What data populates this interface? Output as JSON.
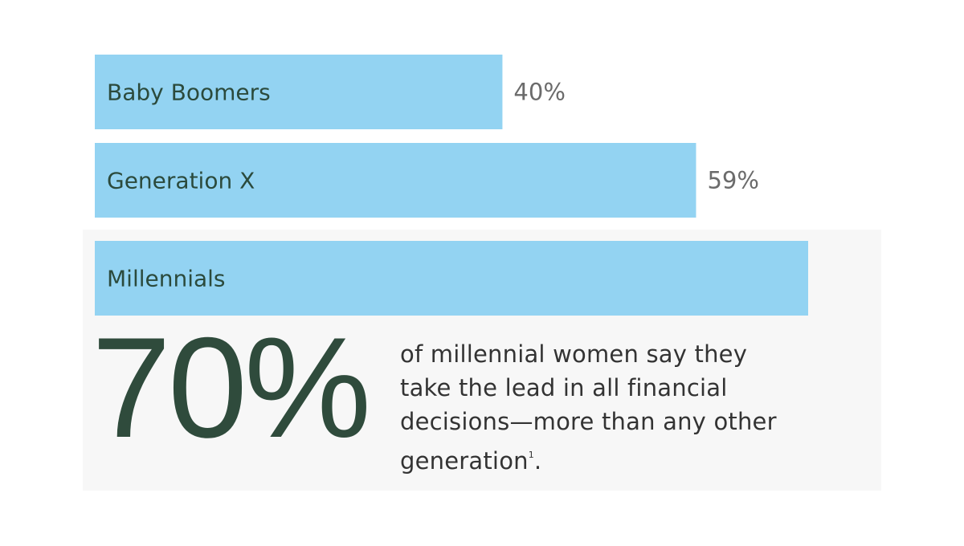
{
  "chart_data": {
    "type": "bar",
    "orientation": "horizontal",
    "categories": [
      "Baby Boomers",
      "Generation X",
      "Millennials"
    ],
    "values": [
      40,
      59,
      70
    ],
    "value_labels": [
      "40%",
      "59%",
      "70%"
    ],
    "color": "#93d3f2",
    "highlight": "Millennials",
    "annotation": {
      "text": "of millennial women say they take the lead in all financial decisions—more than any other generation",
      "footnote": "1",
      "end": "."
    }
  }
}
